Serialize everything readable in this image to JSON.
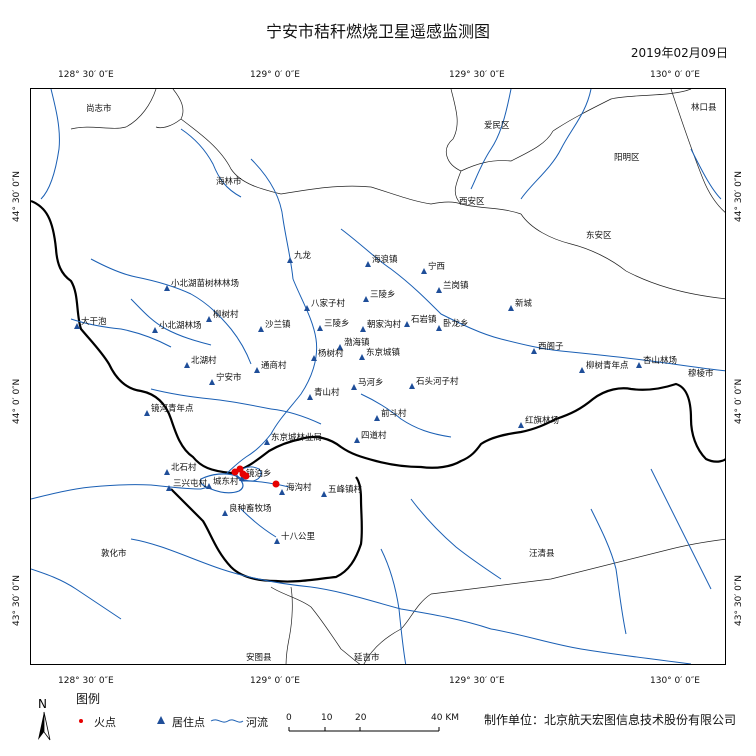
{
  "title": "宁安市秸秆燃烧卫星遥感监测图",
  "date": "2019年02月09日",
  "coords": {
    "top": [
      "128° 30′ 0″E",
      "129° 0′ 0″E",
      "129° 30′ 0″E",
      "130° 0′ 0″E"
    ],
    "bottom": [
      "128° 30′ 0″E",
      "129° 0′ 0″E",
      "129° 30′ 0″E",
      "130° 0′ 0″E"
    ],
    "left": [
      "44° 30′ 0″N",
      "44° 0′ 0″N",
      "43° 30′ 0″N"
    ],
    "right": [
      "44° 30′ 0″N",
      "44° 0′ 0″N",
      "43° 30′ 0″N"
    ]
  },
  "places": {
    "shangzhi": "尚志市",
    "aimin": "爱民区",
    "linkou": "林口县",
    "yangming": "阳明区",
    "hailin": "海林市",
    "xian": "西安区",
    "dongan": "东安区",
    "jiulong": "九龙",
    "hailang": "海浪镇",
    "ningxi": "宁西",
    "xiaobeihu_forest": "小北湖苗树林林场",
    "lanling": "兰岗镇",
    "xincheng": "新城",
    "bajiazi": "八家子村",
    "sanling_a": "三陵乡",
    "dagan": "大干泡",
    "xiaobeihu_lin": "小北湖林场",
    "dayang": "柳树村",
    "shalan": "沙兰镇",
    "sanling_b": "三陵乡",
    "chaoxian": "朝家沟村",
    "shiyan": "石岩镇",
    "wolong": "卧龙乡",
    "xiaohai": "渤海镇",
    "xige": "西阁子",
    "beihu": "北湖村",
    "tongshang": "通商村",
    "yangshu": "杨树村",
    "dongjing": "东京城镇",
    "liushu_qn": "柳树青年点",
    "qiandoulin": "杏山林场",
    "suileng": "穆棱市",
    "ningan": "宁安市",
    "qingshan": "青山村",
    "mahe": "马河乡",
    "shitou": "石头河子村",
    "jinghe_qn": "镜河青年点",
    "qiandou": "前斗村",
    "hongxing": "红旗林场",
    "dongjing_forest": "东京城林业局",
    "sidao": "四道村",
    "beishi": "北石村",
    "jingbo": "镜泊乡",
    "sanxing": "三兴屯村",
    "chengdong": "城东村",
    "haigou": "海沟村",
    "wufeng": "五峰镇村",
    "liangzhong": "良种畜牧场",
    "shiba": "十八公里",
    "dunhua": "敦化市",
    "wangqing": "汪清县",
    "antu": "安图县",
    "yanji": "延吉市"
  },
  "legend": {
    "title": "图例",
    "fire": "火点",
    "settlement": "居住点",
    "river": "河流"
  },
  "scale": [
    "0",
    "10",
    "20",
    "40 KM"
  ],
  "producer": "制作单位：北京航天宏图信息技术股份有限公司",
  "north_label": "N",
  "colors": {
    "river": "#1a5fb4",
    "boundary": "#000000",
    "fire": "#e60000",
    "settlement": "#1f4e99"
  }
}
